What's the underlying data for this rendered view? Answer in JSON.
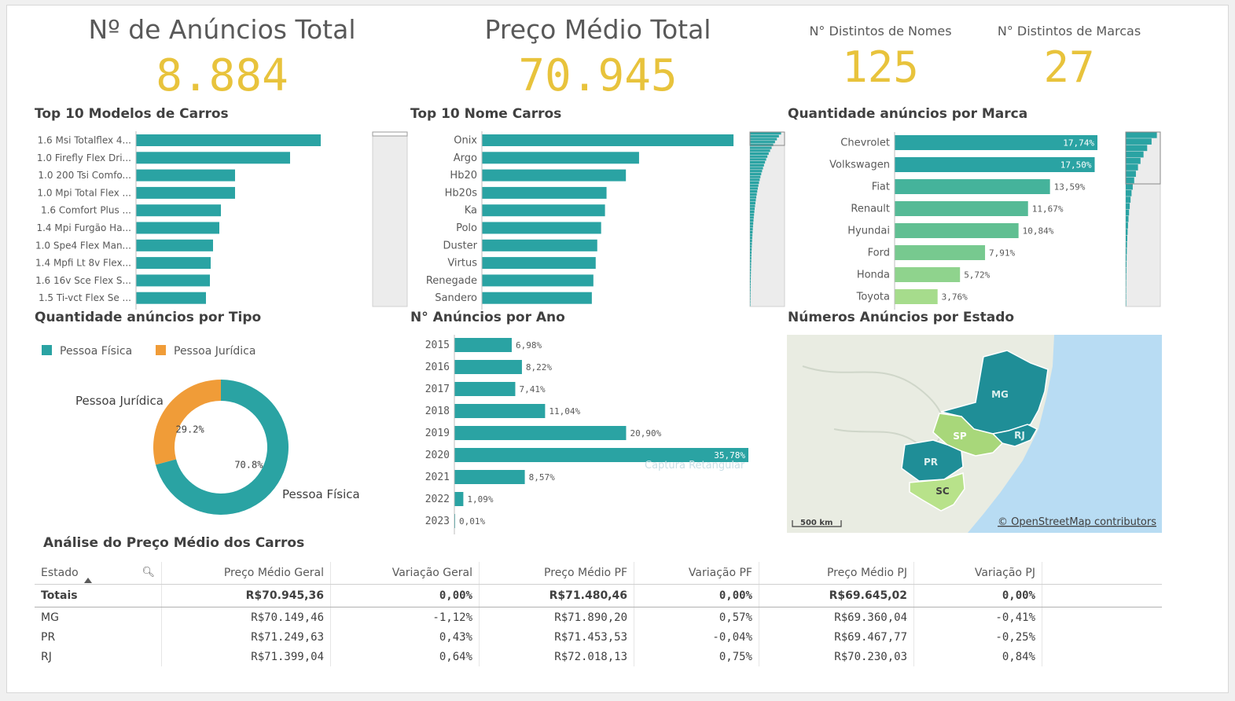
{
  "kpis": {
    "anuncios_title": "Nº de Anúncios Total",
    "anuncios_value": "8.884",
    "preco_title": "Preço Médio Total",
    "preco_value": "70.945",
    "nomes_title": "N° Distintos de Nomes",
    "nomes_value": "125",
    "marcas_title": "N° Distintos de Marcas",
    "marcas_value": "27"
  },
  "titles": {
    "modelos": "Top 10 Modelos de Carros",
    "nomes": "Top 10 Nome Carros",
    "marca": "Quantidade anúncios por Marca",
    "tipo": "Quantidade anúncios por Tipo",
    "ano": "N° Anúncios por Ano",
    "estado": "Números Anúncios por Estado",
    "analise": "Análise do Preço Médio dos Carros"
  },
  "colors": {
    "teal": "#2aa3a3",
    "orange": "#f09c38",
    "kpi": "#e8c33c"
  },
  "chart_data": [
    {
      "id": "modelos",
      "type": "bar",
      "orientation": "horizontal",
      "categories": [
        "1.6 Msi Totalflex 4...",
        "1.0 Firefly Flex Dri...",
        "1.0 200 Tsi Comfo...",
        "1.0 Mpi Total Flex ...",
        "1.6 Comfort Plus ...",
        "1.4 Mpi Furgão Ha...",
        "1.0 Spe4 Flex Man...",
        "1.4 Mpfi Lt 8v Flex...",
        "1.6 16v Sce Flex S...",
        "1.5 Ti-vct Flex Se ..."
      ],
      "values": [
        235,
        196,
        126,
        126,
        108,
        106,
        98,
        95,
        94,
        89
      ],
      "xlim": [
        0,
        240
      ]
    },
    {
      "id": "nomes",
      "type": "bar",
      "orientation": "horizontal",
      "categories": [
        "Onix",
        "Argo",
        "Hb20",
        "Hb20s",
        "Ka",
        "Polo",
        "Duster",
        "Virtus",
        "Renegade",
        "Sandero"
      ],
      "values": [
        325,
        203,
        186,
        161,
        159,
        154,
        149,
        147,
        144,
        142
      ],
      "xlim": [
        0,
        330
      ]
    },
    {
      "id": "marca",
      "type": "bar",
      "orientation": "horizontal",
      "categories": [
        "Chevrolet",
        "Volkswagen",
        "Fiat",
        "Renault",
        "Hyundai",
        "Ford",
        "Honda",
        "Toyota"
      ],
      "values": [
        17.74,
        17.5,
        13.59,
        11.67,
        10.84,
        7.91,
        5.72,
        3.76
      ],
      "labels": [
        "17,74%",
        "17,50%",
        "13,59%",
        "11,67%",
        "10,84%",
        "7,91%",
        "5,72%",
        "3,76%"
      ],
      "colors": [
        "#2aa3a3",
        "#2aa3a3",
        "#45b39b",
        "#55ba96",
        "#60bf92",
        "#77c98f",
        "#8fd38d",
        "#a6dc8c"
      ]
    },
    {
      "id": "tipo",
      "type": "pie",
      "legend": [
        "Pessoa Física",
        "Pessoa Jurídica"
      ],
      "values": [
        70.8,
        29.2
      ],
      "labels": [
        "70.8%",
        "29.2%"
      ],
      "colors": [
        "#2aa3a3",
        "#f09c38"
      ]
    },
    {
      "id": "ano",
      "type": "bar",
      "orientation": "horizontal",
      "categories": [
        "2015",
        "2016",
        "2017",
        "2018",
        "2019",
        "2020",
        "2021",
        "2022",
        "2023"
      ],
      "values": [
        6.98,
        8.22,
        7.41,
        11.04,
        20.9,
        35.78,
        8.57,
        1.09,
        0.01
      ],
      "labels": [
        "6,98%",
        "8,22%",
        "7,41%",
        "11,04%",
        "20,90%",
        "35,78%",
        "8,57%",
        "1,09%",
        "0,01%"
      ]
    }
  ],
  "map": {
    "states": [
      "MG",
      "SP",
      "RJ",
      "PR",
      "SC"
    ],
    "scale": "500 km",
    "attribution": "© OpenStreetMap contributors",
    "watermark": "Captura Retangular"
  },
  "table": {
    "headers": [
      "Estado",
      "Preço Médio Geral",
      "Variação Geral",
      "Preço Médio PF",
      "Variação PF",
      "Preço Médio PJ",
      "Variação PJ"
    ],
    "totals": [
      "Totais",
      "R$70.945,36",
      "0,00%",
      "R$71.480,46",
      "0,00%",
      "R$69.645,02",
      "0,00%"
    ],
    "rows": [
      [
        "MG",
        "R$70.149,46",
        "-1,12%",
        "R$71.890,20",
        "0,57%",
        "R$69.360,04",
        "-0,41%"
      ],
      [
        "PR",
        "R$71.249,63",
        "0,43%",
        "R$71.453,53",
        "-0,04%",
        "R$69.467,77",
        "-0,25%"
      ],
      [
        "RJ",
        "R$71.399,04",
        "0,64%",
        "R$72.018,13",
        "0,75%",
        "R$70.230,03",
        "0,84%"
      ]
    ]
  }
}
